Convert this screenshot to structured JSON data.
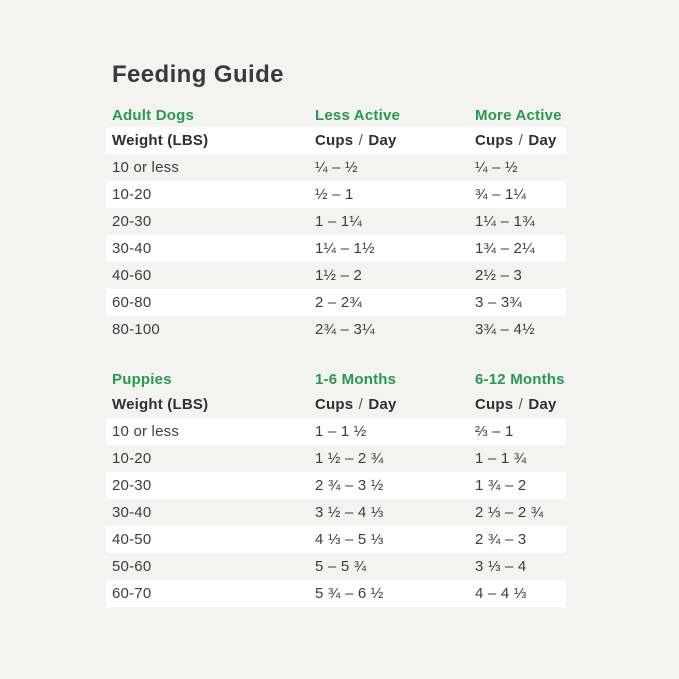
{
  "page": {
    "title": "Feeding Guide",
    "background_color": "#f3f3f2",
    "accent_green": "#289a4e",
    "stripe_white": "#ffffff"
  },
  "tables": [
    {
      "section": "Adult Dogs",
      "col2": "Less Active",
      "col3": "More Active",
      "stripe_start": "white",
      "header_row": [
        "Weight (LBS)",
        "Cups / Day",
        "Cups / Day"
      ],
      "rows": [
        [
          "10 or less",
          "¼ – ½",
          "¼ – ½"
        ],
        [
          "10-20",
          "½ – 1",
          "¾ – 1¼"
        ],
        [
          "20-30",
          "1 – 1¼",
          "1¼ – 1¾"
        ],
        [
          "30-40",
          "1¼ – 1½",
          "1¾ – 2¼"
        ],
        [
          "40-60",
          "1½ – 2",
          "2½ – 3"
        ],
        [
          "60-80",
          "2 – 2¾",
          "3 – 3¾"
        ],
        [
          "80-100",
          "2¾ – 3¼",
          "3¾ – 4½"
        ]
      ]
    },
    {
      "section": "Puppies",
      "col2": "1-6 Months",
      "col3": "6-12 Months",
      "stripe_start": "gray",
      "header_row": [
        "Weight (LBS)",
        "Cups / Day",
        "Cups / Day"
      ],
      "rows": [
        [
          "10 or less",
          "1 – 1 ½",
          "⅔ – 1"
        ],
        [
          "10-20",
          "1 ½ – 2 ¾",
          "1 – 1 ¾"
        ],
        [
          "20-30",
          "2 ¾ – 3 ½",
          "1 ¾ – 2"
        ],
        [
          "30-40",
          "3 ½ – 4 ⅓",
          "2 ⅓ – 2 ¾"
        ],
        [
          "40-50",
          "4 ⅓ – 5 ⅓",
          "2 ¾ – 3"
        ],
        [
          "50-60",
          "5 – 5 ¾",
          "3 ⅓ – 4"
        ],
        [
          "60-70",
          "5 ¾ – 6 ½",
          "4 – 4 ⅓"
        ]
      ]
    }
  ]
}
